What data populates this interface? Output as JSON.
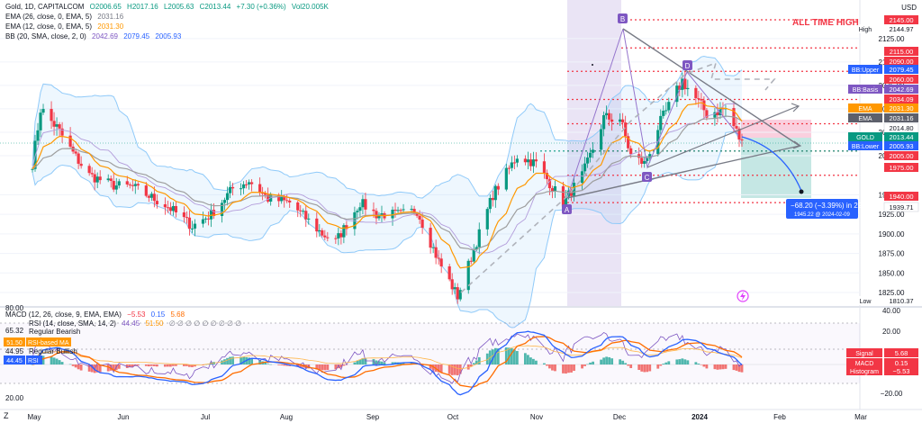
{
  "header": {
    "symbol_line": {
      "symbol": "Gold, 1D, CAPITALCOM",
      "o": "O2006.65",
      "h": "H2017.16",
      "l": "L2005.63",
      "c": "C2013.44",
      "chg": "+7.30 (+0.36%)",
      "vol": "Vol20.005K"
    },
    "ema26": {
      "label": "EMA (26, close, 0, EMA, 5)",
      "value": "2031.16"
    },
    "ema12": {
      "label": "EMA (12, close, 0, EMA, 5)",
      "value": "2031.30"
    },
    "bb": {
      "label": "BB (20, SMA, close, 2, 0)",
      "v1": "2042.69",
      "v2": "2079.45",
      "v3": "2005.93"
    },
    "currency": "USD"
  },
  "macd_header": {
    "label": "MACD (12, 26, close, 9, EMA, EMA)",
    "v1": "−5.53",
    "v2": "0.15",
    "v3": "5.68"
  },
  "rsi_header": {
    "label": "RSI (14, close, SMA, 14, 2)",
    "v1": "44.45",
    "v2": "51.50",
    "tail": "∅ ∅ ∅ ∅ ∅ ∅ ∅ ∅ ∅"
  },
  "annotations": {
    "ath": "ALL TIME HIGH",
    "projection_line1": "−68.20 (−3.39%) in 22d",
    "projection_line2": "1945.22 @ 2024-02-09",
    "wave_labels": [
      "A",
      "B",
      "C",
      "D",
      "A"
    ]
  },
  "price_tags": [
    {
      "text": "2145.00",
      "kind": "red"
    },
    {
      "text": "High",
      "kind": "plain",
      "value": "2144.97"
    },
    {
      "text": "2115.00",
      "kind": "red"
    },
    {
      "text": "2090.00",
      "kind": "red"
    },
    {
      "text": "BB:Upper",
      "kind": "blue",
      "value": "2079.45"
    },
    {
      "text": "2060.00",
      "kind": "red"
    },
    {
      "text": "BB:Basis",
      "kind": "purple",
      "value": "2042.69"
    },
    {
      "text": "2034.09",
      "kind": "red"
    },
    {
      "text": "EMA",
      "kind": "orange",
      "value": "2031.30"
    },
    {
      "text": "EMA",
      "kind": "gray",
      "value": "2031.16"
    },
    {
      "text": "2014.80",
      "kind": "grayplain"
    },
    {
      "text": "GOLD",
      "kind": "green",
      "value": "2013.44"
    },
    {
      "text": "BB:Lower",
      "kind": "blue",
      "value": "2005.93"
    },
    {
      "text": "2005.00",
      "kind": "red"
    },
    {
      "text": "1975.00",
      "kind": "red"
    },
    {
      "text": "1940.00",
      "kind": "red"
    },
    {
      "text": "1939.71",
      "kind": "grayplain"
    },
    {
      "text": "Low",
      "kind": "plain",
      "value": "1810.37"
    }
  ],
  "indicator_tags": [
    {
      "text": "Signal",
      "value": "5.68",
      "kind": "red"
    },
    {
      "text": "MACD",
      "value": "0.15",
      "kind": "red"
    },
    {
      "text": "Histogram",
      "value": "−5.53",
      "kind": "red"
    },
    {
      "text": "51.50",
      "label": "RSI-based MA",
      "kind": "orange"
    },
    {
      "text": "44.45",
      "label": "RSI",
      "kind": "blue"
    }
  ],
  "rsi_labels": {
    "bear": "Regular Bearish",
    "bull": "Regular Bullish",
    "v6532": "65.32",
    "v4495": "44.95",
    "top": "80.00",
    "bottom": "20.00"
  },
  "chart_data": {
    "type": "candlestick",
    "series_name": "Gold, 1D, CAPITALCOM",
    "x_labels": [
      "May",
      "Jun",
      "Jul",
      "Aug",
      "Sep",
      "Oct",
      "Nov",
      "Dec",
      "2024",
      "Feb",
      "Mar"
    ],
    "y_ticks": [
      1825.0,
      1850.0,
      1875.0,
      1900.0,
      1925.0,
      1950.0,
      2000.0,
      2025.0,
      2050.0,
      2075.0,
      2100.0,
      2125.0
    ],
    "ylim": [
      1805,
      2150
    ],
    "macd_ticks": [
      "40.00",
      "20.00",
      "0.00",
      "−20.00"
    ],
    "approx_close_path": [
      [
        "2023-05-01",
        1990
      ],
      [
        "2023-05-04",
        2050
      ],
      [
        "2023-05-10",
        2030
      ],
      [
        "2023-05-22",
        1975
      ],
      [
        "2023-05-31",
        1962
      ],
      [
        "2023-06-07",
        1960
      ],
      [
        "2023-06-20",
        1935
      ],
      [
        "2023-06-29",
        1910
      ],
      [
        "2023-07-06",
        1925
      ],
      [
        "2023-07-14",
        1958
      ],
      [
        "2023-07-20",
        1968
      ],
      [
        "2023-07-27",
        1945
      ],
      [
        "2023-08-04",
        1940
      ],
      [
        "2023-08-16",
        1900
      ],
      [
        "2023-08-21",
        1890
      ],
      [
        "2023-08-30",
        1940
      ],
      [
        "2023-09-05",
        1925
      ],
      [
        "2023-09-14",
        1925
      ],
      [
        "2023-09-20",
        1930
      ],
      [
        "2023-09-28",
        1865
      ],
      [
        "2023-10-05",
        1820
      ],
      [
        "2023-10-09",
        1860
      ],
      [
        "2023-10-18",
        1950
      ],
      [
        "2023-10-27",
        2000
      ],
      [
        "2023-11-03",
        1990
      ],
      [
        "2023-11-13",
        1940
      ],
      [
        "2023-11-20",
        1975
      ],
      [
        "2023-11-28",
        2040
      ],
      [
        "2023-12-04",
        2040
      ],
      [
        "2023-12-08",
        2000
      ],
      [
        "2023-12-13",
        1990
      ],
      [
        "2023-12-18",
        2030
      ],
      [
        "2023-12-27",
        2080
      ],
      [
        "2024-01-05",
        2045
      ],
      [
        "2024-01-12",
        2050
      ],
      [
        "2024-01-18",
        2013
      ]
    ],
    "levels": [
      2145.0,
      2115.0,
      2090.0,
      2060.0,
      2034.09,
      2005.0,
      1975.0,
      1940.0
    ]
  }
}
